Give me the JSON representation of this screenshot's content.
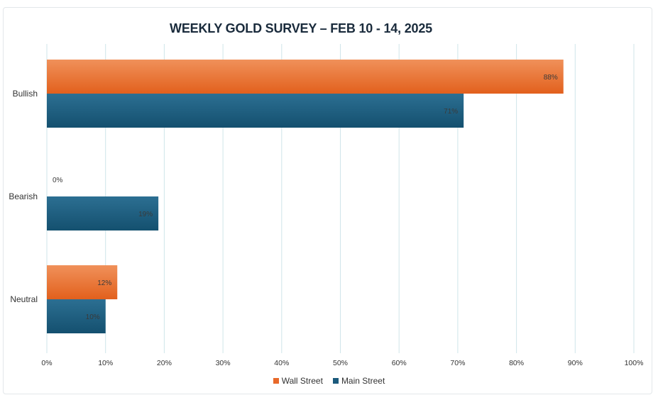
{
  "chart_data": {
    "type": "bar",
    "orientation": "horizontal",
    "title": "WEEKLY GOLD SURVEY – FEB 10 - 14, 2025",
    "categories": [
      "Bullish",
      "Bearish",
      "Neutral"
    ],
    "series": [
      {
        "name": "Wall Street",
        "values": [
          88,
          0,
          12
        ],
        "labels": [
          "88%",
          "0%",
          "12%"
        ],
        "color": "#e8692a"
      },
      {
        "name": "Main Street",
        "values": [
          71,
          19,
          10
        ],
        "labels": [
          "71%",
          "19%",
          "10%"
        ],
        "color": "#1b5a7c"
      }
    ],
    "xlim": [
      0,
      100
    ],
    "x_ticks": [
      "0%",
      "10%",
      "20%",
      "30%",
      "40%",
      "50%",
      "60%",
      "70%",
      "80%",
      "90%",
      "100%"
    ],
    "grid": true,
    "legend_position": "bottom"
  }
}
